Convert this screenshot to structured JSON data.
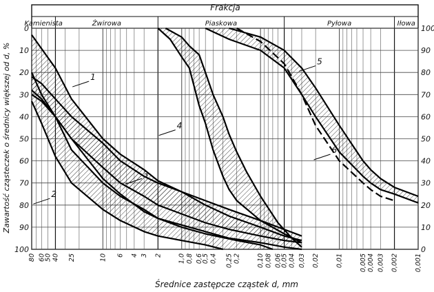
{
  "chart_data": {
    "type": "line",
    "title": "Frakcja",
    "xlabel": "Średnice zastępcze cząstek d, mm",
    "ylabel": "Zawartość cząsteczek o średnicy większej od d, %",
    "x_scale": "log",
    "x_reversed": true,
    "xlim": [
      80,
      0.001
    ],
    "ylim_left": [
      0,
      100
    ],
    "ylim_right": [
      100,
      0
    ],
    "grid": true,
    "fractions": [
      {
        "name": "Kamienista",
        "from": 80,
        "to": 40
      },
      {
        "name": "Żwirowa",
        "from": 40,
        "to": 2
      },
      {
        "name": "Piaskowa",
        "from": 2,
        "to": 0.05
      },
      {
        "name": "Pyłowa",
        "from": 0.05,
        "to": 0.002
      },
      {
        "name": "Iłowa",
        "from": 0.002,
        "to": 0.001
      }
    ],
    "x_ticks": [
      {
        "v": 80,
        "t": "80"
      },
      {
        "v": 60,
        "t": "60"
      },
      {
        "v": 50,
        "t": "50"
      },
      {
        "v": 40,
        "t": "40"
      },
      {
        "v": 25,
        "t": "25"
      },
      {
        "v": 10,
        "t": "10"
      },
      {
        "v": 6,
        "t": "6"
      },
      {
        "v": 4,
        "t": "4"
      },
      {
        "v": 3,
        "t": "3"
      },
      {
        "v": 2,
        "t": "2"
      },
      {
        "v": 1.0,
        "t": "1,0"
      },
      {
        "v": 0.8,
        "t": "0,8"
      },
      {
        "v": 0.6,
        "t": "0,6"
      },
      {
        "v": 0.5,
        "t": "0,5"
      },
      {
        "v": 0.4,
        "t": "0,4"
      },
      {
        "v": 0.25,
        "t": "0,25"
      },
      {
        "v": 0.2,
        "t": "0,2"
      },
      {
        "v": 0.1,
        "t": "0,10"
      },
      {
        "v": 0.08,
        "t": "0,08"
      },
      {
        "v": 0.06,
        "t": "0,06"
      },
      {
        "v": 0.05,
        "t": "0,05"
      },
      {
        "v": 0.04,
        "t": "0,04"
      },
      {
        "v": 0.03,
        "t": "0,03"
      },
      {
        "v": 0.02,
        "t": "0,02"
      },
      {
        "v": 0.01,
        "t": "0,01"
      },
      {
        "v": 0.005,
        "t": "0,005"
      },
      {
        "v": 0.004,
        "t": "0,004"
      },
      {
        "v": 0.003,
        "t": "0,003"
      },
      {
        "v": 0.002,
        "t": "0,002"
      },
      {
        "v": 0.001,
        "t": "0,001"
      }
    ],
    "y_ticks_left": [
      0,
      10,
      20,
      30,
      40,
      50,
      60,
      70,
      80,
      90,
      100
    ],
    "y_ticks_right": [
      100,
      90,
      80,
      70,
      60,
      50,
      40,
      30,
      20,
      10,
      0
    ],
    "bands": [
      {
        "name": "1",
        "upper": [
          [
            80,
            3
          ],
          [
            40,
            18
          ],
          [
            25,
            32
          ],
          [
            10,
            50
          ],
          [
            6,
            57
          ],
          [
            3,
            64
          ],
          [
            2,
            69
          ],
          [
            1.0,
            74
          ],
          [
            0.5,
            80
          ],
          [
            0.25,
            85
          ],
          [
            0.1,
            90
          ],
          [
            0.05,
            94
          ],
          [
            0.03,
            96
          ]
        ],
        "lower": [
          [
            80,
            30
          ],
          [
            60,
            33
          ],
          [
            40,
            40
          ],
          [
            25,
            50
          ],
          [
            10,
            68
          ],
          [
            6,
            75
          ],
          [
            3,
            83
          ],
          [
            2,
            86
          ],
          [
            1.0,
            89
          ],
          [
            0.5,
            92
          ],
          [
            0.25,
            95
          ],
          [
            0.1,
            97
          ],
          [
            0.05,
            99
          ],
          [
            0.03,
            100
          ]
        ]
      },
      {
        "name": "2",
        "upper": [
          [
            80,
            20
          ],
          [
            60,
            30
          ],
          [
            40,
            40
          ],
          [
            25,
            55
          ],
          [
            10,
            70
          ],
          [
            6,
            76
          ],
          [
            3,
            82
          ],
          [
            2,
            86
          ],
          [
            1.0,
            90
          ],
          [
            0.5,
            93
          ],
          [
            0.2,
            96
          ],
          [
            0.1,
            98
          ],
          [
            0.07,
            100
          ]
        ],
        "lower": [
          [
            80,
            33
          ],
          [
            60,
            43
          ],
          [
            40,
            58
          ],
          [
            25,
            70
          ],
          [
            10,
            82
          ],
          [
            6,
            87
          ],
          [
            3,
            92
          ],
          [
            2,
            94
          ],
          [
            1.0,
            96
          ],
          [
            0.5,
            98
          ],
          [
            0.3,
            100
          ]
        ]
      },
      {
        "name": "3",
        "upper": [
          [
            80,
            22
          ],
          [
            60,
            25
          ],
          [
            40,
            32
          ],
          [
            25,
            40
          ],
          [
            10,
            52
          ],
          [
            6,
            60
          ],
          [
            3,
            67
          ],
          [
            2,
            70
          ],
          [
            1.0,
            74
          ],
          [
            0.5,
            78
          ],
          [
            0.25,
            82
          ],
          [
            0.1,
            87
          ],
          [
            0.05,
            91
          ],
          [
            0.03,
            94
          ]
        ],
        "lower": [
          [
            80,
            28
          ],
          [
            60,
            32
          ],
          [
            40,
            40
          ],
          [
            25,
            50
          ],
          [
            10,
            63
          ],
          [
            6,
            70
          ],
          [
            3,
            76
          ],
          [
            2,
            80
          ],
          [
            1.0,
            84
          ],
          [
            0.5,
            88
          ],
          [
            0.25,
            91
          ],
          [
            0.1,
            94
          ],
          [
            0.05,
            96
          ],
          [
            0.03,
            97
          ]
        ]
      },
      {
        "name": "4",
        "upper": [
          [
            2,
            0
          ],
          [
            1.4,
            5
          ],
          [
            1.0,
            13
          ],
          [
            0.8,
            18
          ],
          [
            0.6,
            35
          ],
          [
            0.5,
            43
          ],
          [
            0.4,
            55
          ],
          [
            0.3,
            67
          ],
          [
            0.25,
            73
          ],
          [
            0.2,
            78
          ],
          [
            0.1,
            87
          ],
          [
            0.05,
            93
          ],
          [
            0.03,
            97
          ]
        ],
        "lower": [
          [
            1.6,
            0
          ],
          [
            1.0,
            4
          ],
          [
            0.8,
            8
          ],
          [
            0.6,
            12
          ],
          [
            0.5,
            20
          ],
          [
            0.4,
            30
          ],
          [
            0.3,
            40
          ],
          [
            0.25,
            48
          ],
          [
            0.2,
            56
          ],
          [
            0.15,
            65
          ],
          [
            0.1,
            76
          ],
          [
            0.06,
            88
          ],
          [
            0.04,
            95
          ],
          [
            0.03,
            99
          ]
        ]
      },
      {
        "name": "5",
        "upper": [
          [
            0.25,
            0
          ],
          [
            0.1,
            4
          ],
          [
            0.05,
            10
          ],
          [
            0.03,
            18
          ],
          [
            0.02,
            27
          ],
          [
            0.01,
            44
          ],
          [
            0.005,
            60
          ],
          [
            0.004,
            64
          ],
          [
            0.003,
            68
          ],
          [
            0.002,
            72
          ],
          [
            0.001,
            76
          ]
        ],
        "lower": [
          [
            0.5,
            0
          ],
          [
            0.25,
            5
          ],
          [
            0.1,
            10
          ],
          [
            0.05,
            18
          ],
          [
            0.03,
            30
          ],
          [
            0.02,
            40
          ],
          [
            0.01,
            56
          ],
          [
            0.005,
            67
          ],
          [
            0.004,
            70
          ],
          [
            0.003,
            73
          ],
          [
            0.002,
            75
          ],
          [
            0.001,
            79
          ]
        ]
      }
    ],
    "lines": [
      {
        "name": "6",
        "style": "dashed",
        "points": [
          [
            0.2,
            0
          ],
          [
            0.1,
            6
          ],
          [
            0.05,
            16
          ],
          [
            0.03,
            30
          ],
          [
            0.02,
            44
          ],
          [
            0.01,
            60
          ],
          [
            0.005,
            70
          ],
          [
            0.004,
            73
          ],
          [
            0.003,
            76
          ],
          [
            0.002,
            78
          ]
        ]
      }
    ],
    "annotations": [
      {
        "text": "1",
        "x": 15,
        "y": 24
      },
      {
        "text": "2",
        "x": 47,
        "y": 77
      },
      {
        "text": "3",
        "x": 3.2,
        "y": 68
      },
      {
        "text": "4",
        "x": 1.2,
        "y": 46
      },
      {
        "text": "5",
        "x": 0.02,
        "y": 17
      },
      {
        "text": "6",
        "x": 0.013,
        "y": 57
      }
    ]
  }
}
